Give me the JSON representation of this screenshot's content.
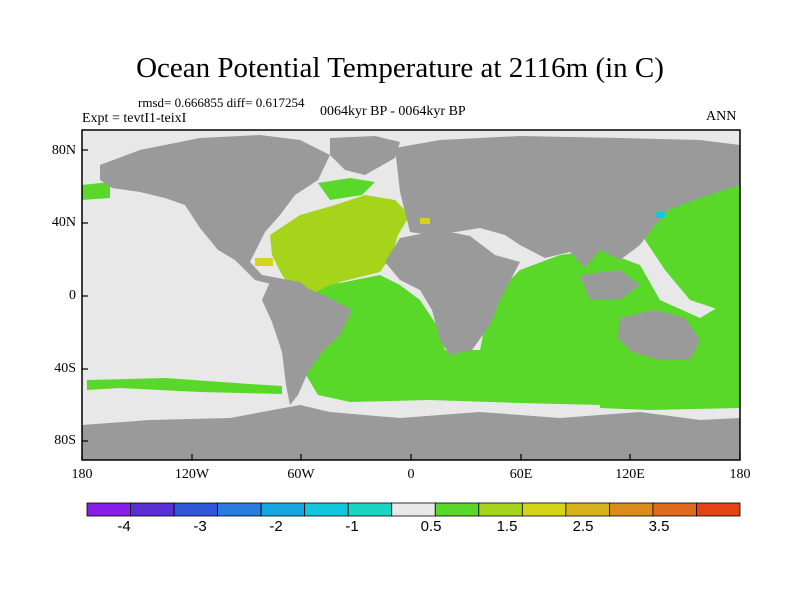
{
  "map": {
    "title": "Ocean Potential Temperature at 2116m (in C)",
    "stats": "rmsd= 0.666855  diff= 0.617254",
    "experiment": "Expt = tevtI1-teixI",
    "period": "0064kyr BP - 0064kyr BP",
    "season": "ANN",
    "lat_labels": [
      "80N",
      "40N",
      "0",
      "40S",
      "80S"
    ],
    "lon_labels": [
      "180",
      "120W",
      "60W",
      "0",
      "60E",
      "120E",
      "180"
    ],
    "colors": {
      "land": "#9a9a9a",
      "near_zero": "#e8e8e8",
      "green": "#5ad82a",
      "yellow_green": "#a6d41a",
      "coast": "#111111"
    }
  },
  "colorbar": {
    "labels": [
      "-4",
      "-3",
      "-2",
      "-1",
      "0.5",
      "1.5",
      "2.5",
      "3.5"
    ],
    "colors": [
      "#8a1ee8",
      "#5a2fd6",
      "#2f55d8",
      "#2a7de0",
      "#17a6e0",
      "#12c6dc",
      "#1ad6c0",
      "#e8e8e8",
      "#5ad82a",
      "#a6d41a",
      "#d4d41a",
      "#d8b21c",
      "#da8c1a",
      "#de6a1a",
      "#e24414"
    ]
  }
}
